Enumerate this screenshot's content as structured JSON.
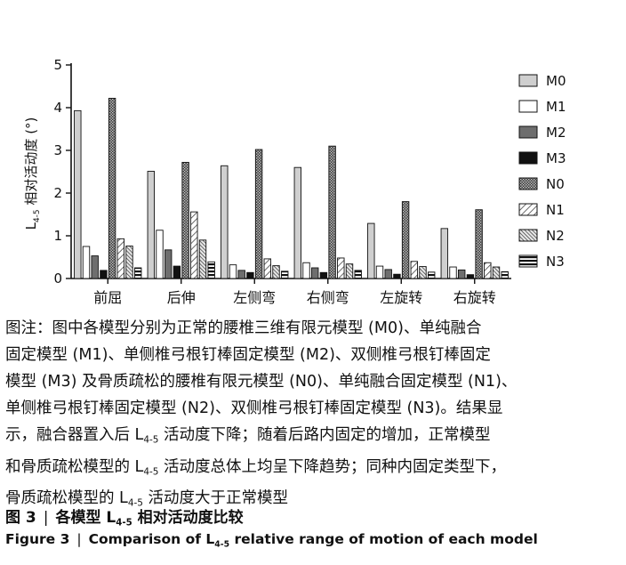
{
  "chart_data": {
    "type": "bar",
    "ylabel_main": "L",
    "ylabel_sub": "4-5",
    "ylabel_rest": " 相对活动度 (°)",
    "ylim": [
      0,
      5
    ],
    "yticks": [
      "0",
      "1",
      "2",
      "3",
      "4",
      "5"
    ],
    "categories": [
      "前屈",
      "后伸",
      "左侧弯",
      "右侧弯",
      "左旋转",
      "右旋转"
    ],
    "series": [
      {
        "name": "M0",
        "pattern": "light-gray",
        "values": [
          3.93,
          2.51,
          2.64,
          2.6,
          1.29,
          1.17
        ]
      },
      {
        "name": "M1",
        "pattern": "white",
        "values": [
          0.75,
          1.13,
          0.32,
          0.37,
          0.29,
          0.27
        ]
      },
      {
        "name": "M2",
        "pattern": "dark-gray",
        "values": [
          0.53,
          0.67,
          0.19,
          0.25,
          0.21,
          0.2
        ]
      },
      {
        "name": "M3",
        "pattern": "black",
        "values": [
          0.19,
          0.29,
          0.14,
          0.14,
          0.1,
          0.09
        ]
      },
      {
        "name": "N0",
        "pattern": "crosshatch",
        "values": [
          4.22,
          2.72,
          3.02,
          3.1,
          1.8,
          1.61
        ]
      },
      {
        "name": "N1",
        "pattern": "diagonal-light",
        "values": [
          0.93,
          1.56,
          0.46,
          0.48,
          0.4,
          0.37
        ]
      },
      {
        "name": "N2",
        "pattern": "diagonal-dense",
        "values": [
          0.76,
          0.9,
          0.3,
          0.34,
          0.28,
          0.27
        ]
      },
      {
        "name": "N3",
        "pattern": "horizontal-stripes",
        "values": [
          0.25,
          0.39,
          0.17,
          0.19,
          0.15,
          0.16
        ]
      }
    ],
    "legend_position": "right",
    "grid": false
  },
  "caption": {
    "lines": [
      "图注：图中各模型分别为正常的腰椎三维有限元模型 (M0)、单纯融合",
      "固定模型 (M1)、单侧椎弓根钉棒固定模型 (M2)、双侧椎弓根钉棒固定",
      "模型 (M3) 及骨质疏松的腰椎有限元模型 (N0)、单纯融合固定模型 (N1)、",
      "单侧椎弓根钉棒固定模型 (N2)、双侧椎弓根钉棒固定模型 (N3)。结果显"
    ],
    "line5_a": "示，融合器置入后 L",
    "line5_sub": "4-5",
    "line5_b": " 活动度下降；随着后路内固定的增加，正常模型",
    "line6_a": "和骨质疏松模型的 L",
    "line6_sub": "4-5",
    "line6_b": " 活动度总体上均呈下降趋势；同种内固定类型下，",
    "line7_a": "骨质疏松模型的 L",
    "line7_sub": "4-5",
    "line7_b": " 活动度大于正常模型"
  },
  "figure_title_cn": {
    "label": "图 3",
    "sep": "|",
    "text_a": "各模型 L",
    "text_sub": "4-5",
    "text_b": " 相对活动度比较"
  },
  "figure_title_en": {
    "label": "Figure 3",
    "sep": "|",
    "text_a": "Comparison of L",
    "text_sub": "4-5",
    "text_b": " relative range of motion of each model"
  }
}
